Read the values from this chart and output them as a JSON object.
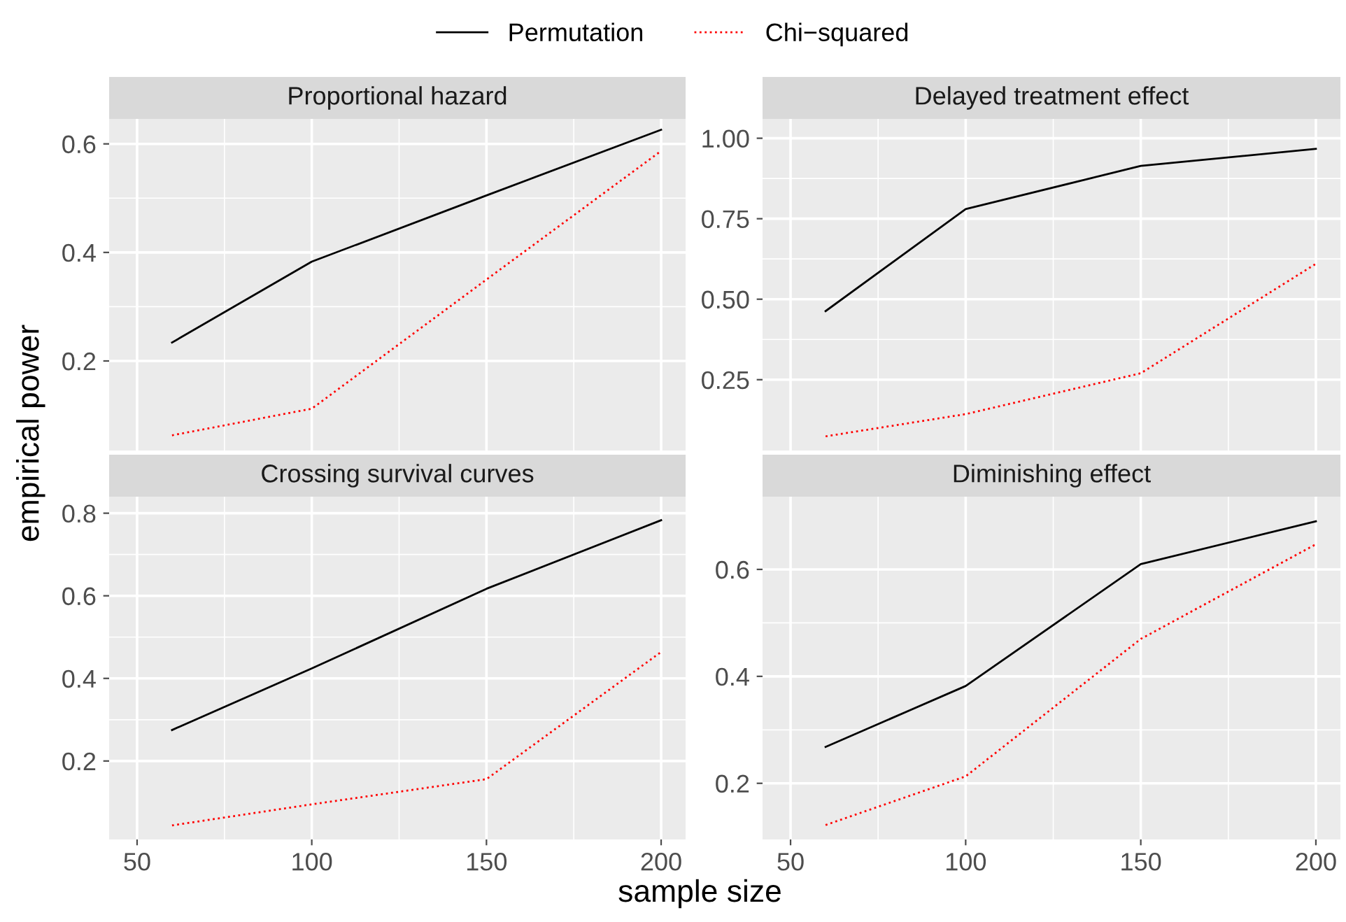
{
  "chart_data": [
    {
      "type": "line",
      "title": "Proportional hazard",
      "ylabel": "empirical power",
      "x": [
        60,
        100,
        150,
        200
      ],
      "xlim": [
        42,
        207
      ],
      "xticks": [
        50,
        100,
        150,
        200
      ],
      "ylim": [
        0.035,
        0.646
      ],
      "yticks": [
        0.2,
        0.4,
        0.6
      ],
      "tick_labels": "y",
      "grid": true,
      "legend": "top",
      "marker": "none",
      "series": [
        {
          "name": "Permutation",
          "color": "#000000",
          "line_style": "solid",
          "values": [
            0.234,
            0.383,
            0.505,
            0.626
          ]
        },
        {
          "name": "Chi−squared",
          "color": "#ff0000",
          "line_style": "dotted",
          "values": [
            0.063,
            0.112,
            0.35,
            0.587
          ]
        }
      ]
    },
    {
      "type": "line",
      "title": "Delayed treatment effect",
      "x": [
        60,
        100,
        150,
        200
      ],
      "xlim": [
        42,
        207
      ],
      "xticks": [
        50,
        100,
        150,
        200
      ],
      "ylim": [
        0.03,
        1.06
      ],
      "yticks": [
        {
          "value": 0.25,
          "label": "0.25"
        },
        {
          "value": 0.5,
          "label": "0.50"
        },
        {
          "value": 0.75,
          "label": "0.75"
        },
        {
          "value": 1.0,
          "label": "1.00"
        }
      ],
      "tick_labels": "y",
      "grid": true,
      "marker": "none",
      "series": [
        {
          "color": "#000000",
          "line_style": "solid",
          "values": [
            0.463,
            0.78,
            0.914,
            0.967
          ]
        },
        {
          "color": "#ff0000",
          "line_style": "dotted",
          "values": [
            0.074,
            0.143,
            0.27,
            0.61
          ]
        }
      ]
    },
    {
      "type": "line",
      "title": "Crossing survival curves",
      "xlabel": "sample size",
      "x": [
        60,
        100,
        150,
        200
      ],
      "xlim": [
        42,
        207
      ],
      "xticks": [
        50,
        100,
        150,
        200
      ],
      "ylim": [
        0.01,
        0.84
      ],
      "yticks": [
        0.2,
        0.4,
        0.6,
        0.8
      ],
      "grid": true,
      "marker": "none",
      "series": [
        {
          "color": "#000000",
          "line_style": "solid",
          "values": [
            0.275,
            0.424,
            0.617,
            0.783
          ]
        },
        {
          "color": "#ff0000",
          "line_style": "dotted",
          "values": [
            0.044,
            0.095,
            0.156,
            0.464
          ]
        }
      ]
    },
    {
      "type": "line",
      "title": "Diminishing effect",
      "x": [
        60,
        100,
        150,
        200
      ],
      "xlim": [
        42,
        207
      ],
      "xticks": [
        50,
        100,
        150,
        200
      ],
      "ylim": [
        0.095,
        0.736
      ],
      "yticks": [
        0.2,
        0.4,
        0.6
      ],
      "grid": true,
      "marker": "none",
      "series": [
        {
          "color": "#000000",
          "line_style": "solid",
          "values": [
            0.268,
            0.382,
            0.61,
            0.69
          ]
        },
        {
          "color": "#ff0000",
          "line_style": "dotted",
          "values": [
            0.122,
            0.213,
            0.47,
            0.647
          ]
        }
      ]
    }
  ]
}
